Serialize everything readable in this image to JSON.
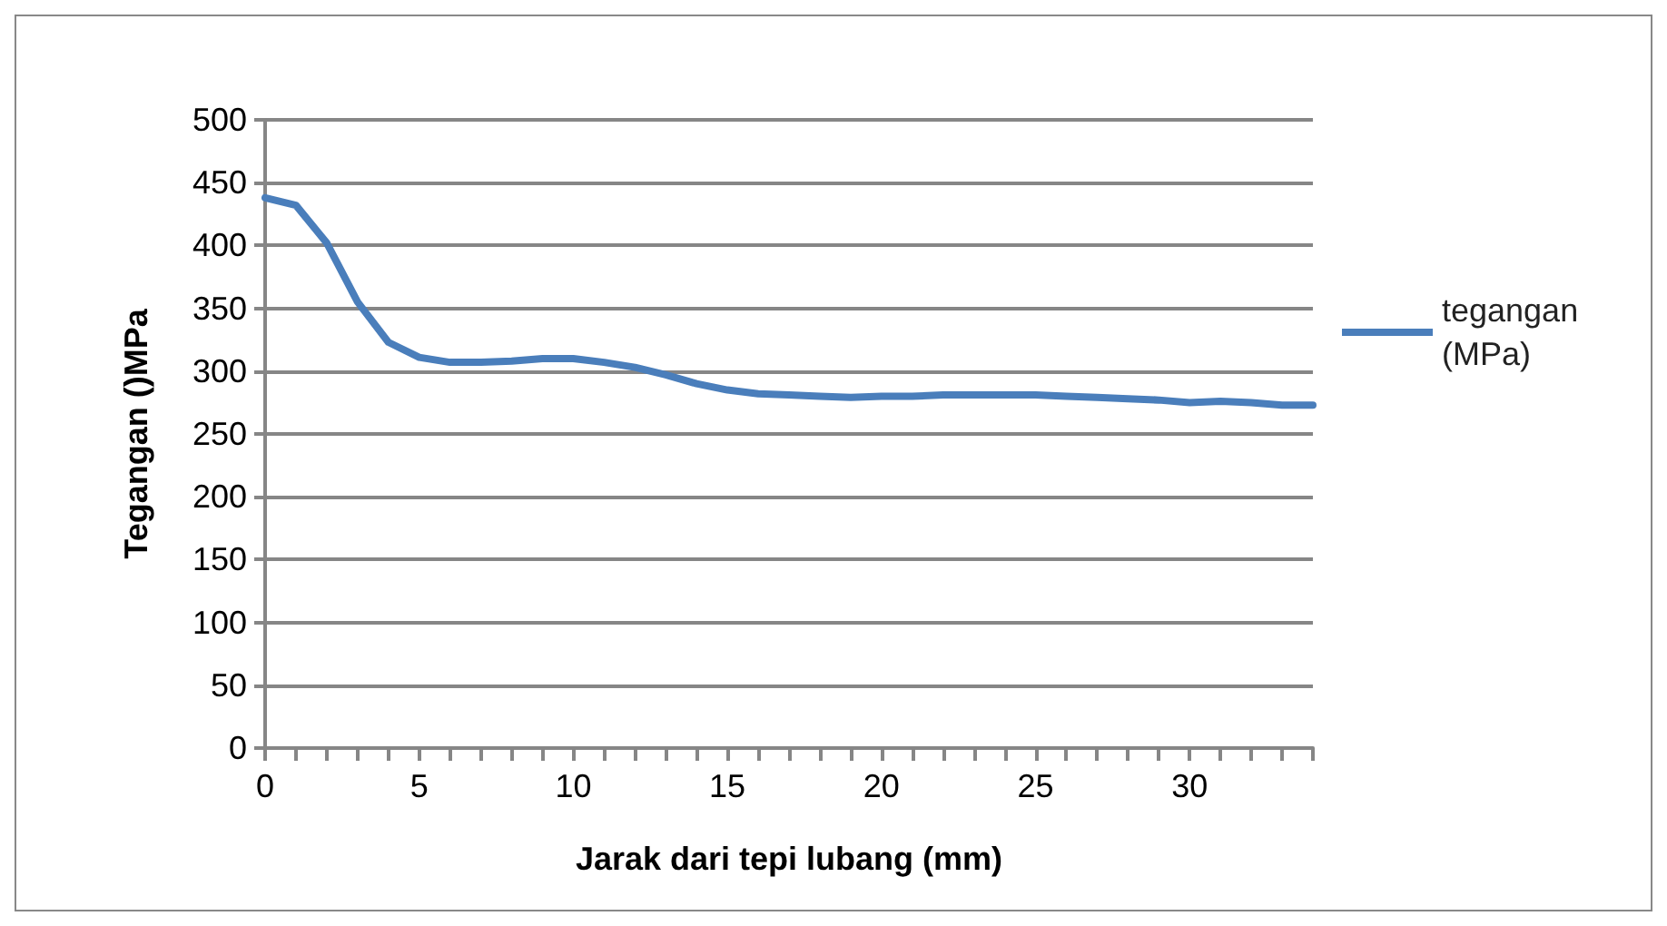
{
  "chart_data": {
    "type": "line",
    "xlabel": "Jarak dari tepi lubang (mm)",
    "ylabel": "Tegangan ()MPa",
    "x": [
      0,
      1,
      2,
      3,
      4,
      5,
      6,
      7,
      8,
      9,
      10,
      11,
      12,
      13,
      14,
      15,
      16,
      17,
      18,
      19,
      20,
      21,
      22,
      23,
      24,
      25,
      26,
      27,
      28,
      29,
      30,
      31,
      32,
      33,
      34
    ],
    "series": [
      {
        "name": "tegangan (MPa)",
        "color": "#4a7ebb",
        "values": [
          438,
          432,
          402,
          355,
          323,
          311,
          307,
          307,
          308,
          310,
          310,
          307,
          303,
          297,
          290,
          285,
          282,
          281,
          280,
          279,
          280,
          280,
          281,
          281,
          281,
          281,
          280,
          279,
          278,
          277,
          275,
          276,
          275,
          273,
          273
        ]
      }
    ],
    "xlim": [
      0,
      34
    ],
    "xticks": [
      0,
      {
        "value": 1,
        "label": null
      },
      {
        "value": 2,
        "label": null
      },
      {
        "value": 3,
        "label": null
      },
      {
        "value": 4,
        "label": null
      },
      5,
      {
        "value": 6,
        "label": null
      },
      {
        "value": 7,
        "label": null
      },
      {
        "value": 8,
        "label": null
      },
      {
        "value": 9,
        "label": null
      },
      10,
      {
        "value": 11,
        "label": null
      },
      {
        "value": 12,
        "label": null
      },
      {
        "value": 13,
        "label": null
      },
      {
        "value": 14,
        "label": null
      },
      15,
      {
        "value": 16,
        "label": null
      },
      {
        "value": 17,
        "label": null
      },
      {
        "value": 18,
        "label": null
      },
      {
        "value": 19,
        "label": null
      },
      20,
      {
        "value": 21,
        "label": null
      },
      {
        "value": 22,
        "label": null
      },
      {
        "value": 23,
        "label": null
      },
      {
        "value": 24,
        "label": null
      },
      25,
      {
        "value": 26,
        "label": null
      },
      {
        "value": 27,
        "label": null
      },
      {
        "value": 28,
        "label": null
      },
      {
        "value": 29,
        "label": null
      },
      30,
      {
        "value": 31,
        "label": null
      },
      {
        "value": 32,
        "label": null
      },
      {
        "value": 33,
        "label": null
      },
      {
        "value": 34,
        "label": null
      }
    ],
    "ylim": [
      0,
      500
    ],
    "yticks": [
      0,
      50,
      100,
      150,
      200,
      250,
      300,
      350,
      400,
      450,
      500
    ],
    "grid": "y",
    "legend": "right",
    "marker": "none",
    "line_style": "solid"
  }
}
